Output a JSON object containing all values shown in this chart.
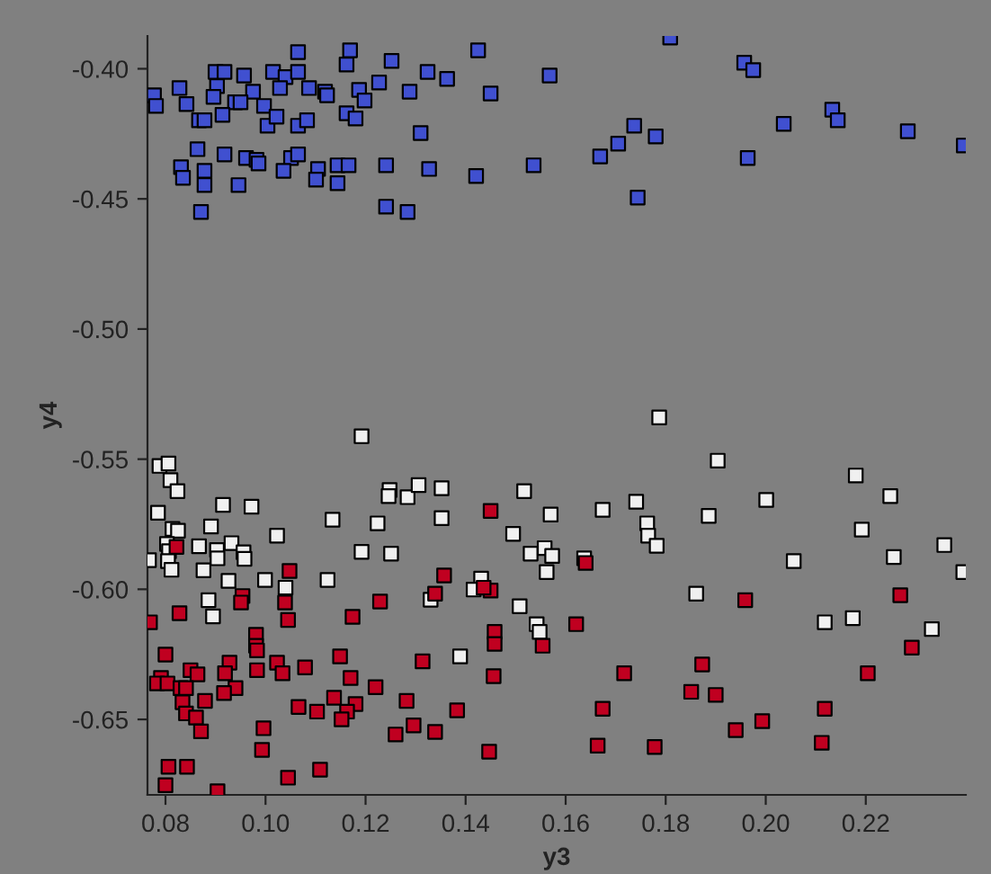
{
  "chart_data": {
    "type": "scatter",
    "xlabel": "y3",
    "ylabel": "y4",
    "xlim": [
      0.0764,
      0.24
    ],
    "ylim": [
      -0.679,
      -0.3874
    ],
    "xticks": [
      {
        "value": 0.08,
        "label": "0.08"
      },
      {
        "value": 0.1,
        "label": "0.10"
      },
      {
        "value": 0.12,
        "label": "0.12"
      },
      {
        "value": 0.14,
        "label": "0.14"
      },
      {
        "value": 0.16,
        "label": "0.16"
      },
      {
        "value": 0.18,
        "label": "0.18"
      },
      {
        "value": 0.2,
        "label": "0.20"
      },
      {
        "value": 0.22,
        "label": "0.22"
      }
    ],
    "yticks": [
      {
        "value": -0.4,
        "label": "-0.40"
      },
      {
        "value": -0.45,
        "label": "-0.45"
      },
      {
        "value": -0.5,
        "label": "-0.50"
      },
      {
        "value": -0.55,
        "label": "-0.55"
      },
      {
        "value": -0.6,
        "label": "-0.60"
      },
      {
        "value": -0.65,
        "label": "-0.65"
      }
    ],
    "marker": "square",
    "grid": false,
    "legend": false,
    "series": [
      {
        "color": "#4050d0",
        "x": [
          0.1065,
          0.1169,
          0.1425,
          0.1162,
          0.1252,
          0.1324,
          0.1363,
          0.1568,
          0.09,
          0.0918,
          0.0957,
          0.1015,
          0.104,
          0.1065,
          0.0828,
          0.0903,
          0.0975,
          0.1029,
          0.1087,
          0.1119,
          0.1123,
          0.1187,
          0.1227,
          0.1288,
          0.145,
          0.0777,
          0.0781,
          0.0842,
          0.0896,
          0.0939,
          0.095,
          0.0997,
          0.1198,
          0.0867,
          0.0878,
          0.0914,
          0.1004,
          0.1022,
          0.1065,
          0.1083,
          0.1162,
          0.118,
          0.131,
          0.0864,
          0.0918,
          0.0961,
          0.0982,
          0.0986,
          0.1051,
          0.1065,
          0.1036,
          0.1105,
          0.1144,
          0.1166,
          0.1241,
          0.1327,
          0.1421,
          0.1536,
          0.0831,
          0.0835,
          0.0878,
          0.0878,
          0.0946,
          0.1101,
          0.1144,
          0.0871,
          0.1241,
          0.1284,
          0.1809,
          0.1957,
          0.1975,
          0.1737,
          0.1705,
          0.1669,
          0.178,
          0.2036,
          0.2133,
          0.2144,
          0.2284,
          0.2396,
          0.1964,
          0.1744
        ],
        "values": [
          -0.3936,
          -0.3929,
          -0.3929,
          -0.3984,
          -0.397,
          -0.4012,
          -0.4039,
          -0.4026,
          -0.4012,
          -0.4012,
          -0.4026,
          -0.4012,
          -0.4032,
          -0.4012,
          -0.4074,
          -0.4067,
          -0.4088,
          -0.4074,
          -0.4074,
          -0.4088,
          -0.4102,
          -0.4081,
          -0.4053,
          -0.4088,
          -0.4095,
          -0.4102,
          -0.4143,
          -0.4136,
          -0.4108,
          -0.4129,
          -0.4129,
          -0.4143,
          -0.4122,
          -0.4198,
          -0.4198,
          -0.4177,
          -0.4219,
          -0.4184,
          -0.4219,
          -0.4198,
          -0.4171,
          -0.4191,
          -0.4247,
          -0.4309,
          -0.4329,
          -0.4343,
          -0.435,
          -0.4364,
          -0.4343,
          -0.4329,
          -0.4392,
          -0.4385,
          -0.4371,
          -0.4371,
          -0.4371,
          -0.4385,
          -0.4412,
          -0.4371,
          -0.4378,
          -0.4419,
          -0.4392,
          -0.4447,
          -0.4447,
          -0.4426,
          -0.444,
          -0.455,
          -0.453,
          -0.455,
          -0.388,
          -0.3977,
          -0.4005,
          -0.4219,
          -0.4288,
          -0.4337,
          -0.426,
          -0.4212,
          -0.4157,
          -0.4198,
          -0.424,
          -0.4295,
          -0.4343,
          -0.4495
        ]
      },
      {
        "color": "#f0f0f0",
        "x": [
          0.1192,
          0.0788,
          0.0806,
          0.081,
          0.0824,
          0.1248,
          0.1246,
          0.1284,
          0.1306,
          0.1352,
          0.1517,
          0.0785,
          0.0915,
          0.0972,
          0.1134,
          0.1224,
          0.1352,
          0.157,
          0.0814,
          0.0825,
          0.0891,
          0.1023,
          0.1495,
          0.0803,
          0.0807,
          0.0867,
          0.0903,
          0.0932,
          0.0956,
          0.0767,
          0.0805,
          0.0812,
          0.0904,
          0.0958,
          0.1192,
          0.1251,
          0.153,
          0.1558,
          0.1573,
          0.1562,
          0.0876,
          0.0926,
          0.0999,
          0.104,
          0.1124,
          0.1431,
          0.1416,
          0.133,
          0.0886,
          0.0895,
          0.1508,
          0.1542,
          0.1548,
          0.1389,
          0.1787,
          0.1904,
          0.218,
          0.2249,
          0.1741,
          0.2001,
          0.1674,
          0.1886,
          0.1763,
          0.1765,
          0.1782,
          0.2192,
          0.2357,
          0.2256,
          0.2395,
          0.2056,
          0.1637,
          0.1861,
          0.2174,
          0.2118,
          0.2332
        ],
        "values": [
          -0.5412,
          -0.5526,
          -0.5517,
          -0.5581,
          -0.5623,
          -0.5619,
          -0.5642,
          -0.5646,
          -0.56,
          -0.5612,
          -0.5623,
          -0.5706,
          -0.5676,
          -0.5683,
          -0.5733,
          -0.5747,
          -0.5727,
          -0.5713,
          -0.5768,
          -0.5775,
          -0.5759,
          -0.5794,
          -0.5787,
          -0.5826,
          -0.5854,
          -0.5835,
          -0.5849,
          -0.5823,
          -0.5858,
          -0.5888,
          -0.5892,
          -0.5925,
          -0.5881,
          -0.5883,
          -0.5856,
          -0.5863,
          -0.5863,
          -0.5842,
          -0.5872,
          -0.5934,
          -0.5927,
          -0.5968,
          -0.5964,
          -0.5994,
          -0.5964,
          -0.5959,
          -0.6001,
          -0.604,
          -0.6042,
          -0.6104,
          -0.6065,
          -0.6134,
          -0.6164,
          -0.6258,
          -0.534,
          -0.5506,
          -0.5563,
          -0.5642,
          -0.5664,
          -0.5657,
          -0.5695,
          -0.5718,
          -0.5747,
          -0.5794,
          -0.5833,
          -0.5771,
          -0.583,
          -0.5876,
          -0.5934,
          -0.5892,
          -0.5881,
          -0.6017,
          -0.6111,
          -0.6127,
          -0.6153
        ]
      },
      {
        "color": "#c00020",
        "x": [
          0.145,
          0.1048,
          0.1357,
          0.1339,
          0.145,
          0.1436,
          0.0822,
          0.1229,
          0.0954,
          0.0951,
          0.1039,
          0.0828,
          0.0769,
          0.1045,
          0.1174,
          0.0981,
          0.0981,
          0.0983,
          0.1458,
          0.1458,
          0.1554,
          0.08,
          0.1149,
          0.0928,
          0.1023,
          0.1079,
          0.085,
          0.0864,
          0.0919,
          0.0983,
          0.1034,
          0.1314,
          0.1456,
          0.117,
          0.0791,
          0.0783,
          0.0804,
          0.083,
          0.0841,
          0.094,
          0.0917,
          0.122,
          0.0834,
          0.0879,
          0.1137,
          0.118,
          0.1282,
          0.0841,
          0.0861,
          0.1066,
          0.1103,
          0.1163,
          0.1152,
          0.1383,
          0.0871,
          0.0996,
          0.126,
          0.1296,
          0.1339,
          0.0993,
          0.1447,
          0.0806,
          0.0843,
          0.1109,
          0.1045,
          0.08,
          0.0904,
          0.164,
          0.1959,
          0.2269,
          0.1621,
          0.2292,
          0.1717,
          0.1873,
          0.2204,
          0.1851,
          0.19,
          0.1674,
          0.2118,
          0.1993,
          0.194,
          0.1664,
          0.1778,
          0.2112
        ],
        "values": [
          -0.5699,
          -0.593,
          -0.5947,
          -0.6017,
          -0.6005,
          -0.5994,
          -0.5837,
          -0.6047,
          -0.6026,
          -0.6051,
          -0.6051,
          -0.6092,
          -0.6127,
          -0.6118,
          -0.6106,
          -0.6175,
          -0.6217,
          -0.6235,
          -0.6164,
          -0.621,
          -0.6217,
          -0.6251,
          -0.6258,
          -0.6282,
          -0.6282,
          -0.63,
          -0.6311,
          -0.6327,
          -0.6323,
          -0.6311,
          -0.6323,
          -0.6277,
          -0.6334,
          -0.6341,
          -0.6341,
          -0.6362,
          -0.6362,
          -0.638,
          -0.638,
          -0.638,
          -0.6399,
          -0.6376,
          -0.6434,
          -0.6429,
          -0.6417,
          -0.6441,
          -0.6429,
          -0.6477,
          -0.6493,
          -0.6452,
          -0.647,
          -0.647,
          -0.65,
          -0.6465,
          -0.6546,
          -0.6534,
          -0.6558,
          -0.6523,
          -0.6548,
          -0.6617,
          -0.6624,
          -0.6682,
          -0.6682,
          -0.6693,
          -0.6724,
          -0.6753,
          -0.6776,
          -0.5899,
          -0.6042,
          -0.6023,
          -0.6134,
          -0.6224,
          -0.6323,
          -0.6289,
          -0.6323,
          -0.6394,
          -0.6406,
          -0.6459,
          -0.6459,
          -0.6507,
          -0.6541,
          -0.6601,
          -0.6606,
          -0.659
        ]
      }
    ]
  }
}
